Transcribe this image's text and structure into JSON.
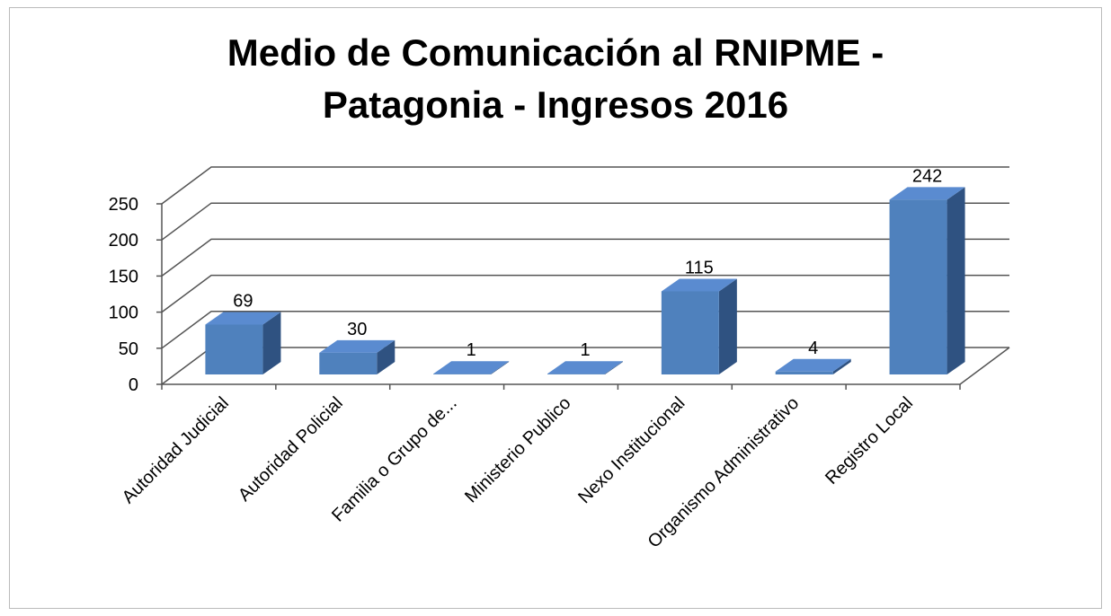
{
  "chart_data": {
    "type": "bar3d",
    "title": "Medio de Comunicación al RNIPME - Patagonia - Ingresos 2016",
    "categories": [
      "Autoridad Judicial",
      "Autoridad Policial",
      "Familia o Grupo de...",
      "Ministerio Publico",
      "Nexo Institucional",
      "Organismo Administrativo",
      "Registro Local"
    ],
    "values": [
      69,
      30,
      1,
      1,
      115,
      4,
      242
    ],
    "color": "#4f81bd",
    "ylim": [
      0,
      250
    ],
    "yticks": [
      0,
      50,
      100,
      150,
      200,
      250
    ],
    "grid": true
  }
}
